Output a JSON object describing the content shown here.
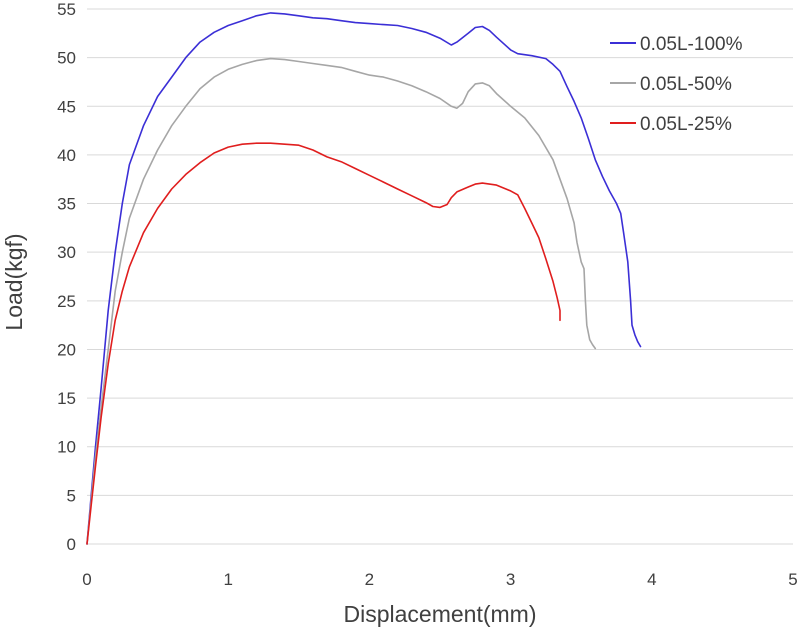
{
  "chart_data": {
    "type": "line",
    "xlabel": "Displacement(mm)",
    "ylabel": "Load(kgf)",
    "xlim": [
      0,
      5
    ],
    "ylim": [
      0,
      55
    ],
    "xticks": [
      0,
      1,
      2,
      3,
      4,
      5
    ],
    "yticks": [
      0,
      5,
      10,
      15,
      20,
      25,
      30,
      35,
      40,
      45,
      50,
      55
    ],
    "grid": "horizontal",
    "legend_position": "top-right",
    "series": [
      {
        "name": "0.05L-100%",
        "color": "#3b2fd6",
        "points": [
          [
            0,
            0
          ],
          [
            0.03,
            5
          ],
          [
            0.06,
            10
          ],
          [
            0.1,
            16
          ],
          [
            0.15,
            24
          ],
          [
            0.2,
            30
          ],
          [
            0.25,
            35
          ],
          [
            0.3,
            39
          ],
          [
            0.4,
            43
          ],
          [
            0.5,
            46
          ],
          [
            0.6,
            48
          ],
          [
            0.7,
            50
          ],
          [
            0.8,
            51.6
          ],
          [
            0.9,
            52.6
          ],
          [
            1.0,
            53.3
          ],
          [
            1.1,
            53.8
          ],
          [
            1.2,
            54.3
          ],
          [
            1.3,
            54.6
          ],
          [
            1.4,
            54.5
          ],
          [
            1.5,
            54.3
          ],
          [
            1.6,
            54.1
          ],
          [
            1.7,
            54.0
          ],
          [
            1.8,
            53.8
          ],
          [
            1.9,
            53.6
          ],
          [
            2.0,
            53.5
          ],
          [
            2.1,
            53.4
          ],
          [
            2.2,
            53.3
          ],
          [
            2.3,
            53.0
          ],
          [
            2.4,
            52.6
          ],
          [
            2.5,
            52.0
          ],
          [
            2.58,
            51.3
          ],
          [
            2.62,
            51.6
          ],
          [
            2.7,
            52.5
          ],
          [
            2.75,
            53.1
          ],
          [
            2.8,
            53.2
          ],
          [
            2.85,
            52.8
          ],
          [
            2.9,
            52.1
          ],
          [
            3.0,
            50.8
          ],
          [
            3.05,
            50.4
          ],
          [
            3.15,
            50.2
          ],
          [
            3.25,
            49.9
          ],
          [
            3.3,
            49.3
          ],
          [
            3.35,
            48.6
          ],
          [
            3.4,
            47.0
          ],
          [
            3.45,
            45.5
          ],
          [
            3.5,
            43.8
          ],
          [
            3.55,
            41.7
          ],
          [
            3.6,
            39.5
          ],
          [
            3.65,
            37.8
          ],
          [
            3.7,
            36.3
          ],
          [
            3.75,
            35.0
          ],
          [
            3.78,
            34.0
          ],
          [
            3.8,
            32.0
          ],
          [
            3.83,
            29.0
          ],
          [
            3.85,
            25.0
          ],
          [
            3.86,
            22.5
          ],
          [
            3.88,
            21.5
          ],
          [
            3.9,
            20.8
          ],
          [
            3.92,
            20.3
          ]
        ]
      },
      {
        "name": "0.05L-50%",
        "color": "#a6a6a6",
        "points": [
          [
            0,
            0
          ],
          [
            0.03,
            4.5
          ],
          [
            0.06,
            9
          ],
          [
            0.1,
            14
          ],
          [
            0.15,
            20
          ],
          [
            0.2,
            26
          ],
          [
            0.25,
            30
          ],
          [
            0.3,
            33.5
          ],
          [
            0.4,
            37.5
          ],
          [
            0.5,
            40.5
          ],
          [
            0.6,
            43
          ],
          [
            0.7,
            45
          ],
          [
            0.8,
            46.8
          ],
          [
            0.9,
            48
          ],
          [
            1.0,
            48.8
          ],
          [
            1.1,
            49.3
          ],
          [
            1.2,
            49.7
          ],
          [
            1.3,
            49.9
          ],
          [
            1.4,
            49.8
          ],
          [
            1.5,
            49.6
          ],
          [
            1.6,
            49.4
          ],
          [
            1.7,
            49.2
          ],
          [
            1.8,
            49.0
          ],
          [
            1.9,
            48.6
          ],
          [
            2.0,
            48.2
          ],
          [
            2.1,
            48.0
          ],
          [
            2.2,
            47.6
          ],
          [
            2.3,
            47.1
          ],
          [
            2.4,
            46.5
          ],
          [
            2.5,
            45.8
          ],
          [
            2.58,
            45.0
          ],
          [
            2.62,
            44.8
          ],
          [
            2.66,
            45.3
          ],
          [
            2.7,
            46.5
          ],
          [
            2.75,
            47.3
          ],
          [
            2.8,
            47.4
          ],
          [
            2.85,
            47.1
          ],
          [
            2.9,
            46.3
          ],
          [
            3.0,
            45.0
          ],
          [
            3.1,
            43.8
          ],
          [
            3.2,
            42.0
          ],
          [
            3.3,
            39.5
          ],
          [
            3.35,
            37.5
          ],
          [
            3.4,
            35.5
          ],
          [
            3.45,
            33.0
          ],
          [
            3.47,
            31.0
          ],
          [
            3.5,
            29.0
          ],
          [
            3.52,
            28.3
          ],
          [
            3.53,
            25.0
          ],
          [
            3.54,
            22.5
          ],
          [
            3.56,
            21.0
          ],
          [
            3.58,
            20.5
          ],
          [
            3.6,
            20.1
          ]
        ]
      },
      {
        "name": "0.05L-25%",
        "color": "#e01e1e",
        "points": [
          [
            0,
            0
          ],
          [
            0.03,
            4
          ],
          [
            0.06,
            8
          ],
          [
            0.1,
            13
          ],
          [
            0.15,
            18.5
          ],
          [
            0.2,
            23
          ],
          [
            0.25,
            26
          ],
          [
            0.3,
            28.5
          ],
          [
            0.4,
            32
          ],
          [
            0.5,
            34.5
          ],
          [
            0.6,
            36.5
          ],
          [
            0.7,
            38
          ],
          [
            0.8,
            39.2
          ],
          [
            0.9,
            40.2
          ],
          [
            1.0,
            40.8
          ],
          [
            1.1,
            41.1
          ],
          [
            1.2,
            41.2
          ],
          [
            1.3,
            41.2
          ],
          [
            1.4,
            41.1
          ],
          [
            1.5,
            41.0
          ],
          [
            1.6,
            40.5
          ],
          [
            1.7,
            39.8
          ],
          [
            1.8,
            39.3
          ],
          [
            1.9,
            38.6
          ],
          [
            2.0,
            37.9
          ],
          [
            2.1,
            37.2
          ],
          [
            2.2,
            36.5
          ],
          [
            2.3,
            35.8
          ],
          [
            2.4,
            35.1
          ],
          [
            2.45,
            34.7
          ],
          [
            2.5,
            34.6
          ],
          [
            2.55,
            34.9
          ],
          [
            2.58,
            35.6
          ],
          [
            2.62,
            36.2
          ],
          [
            2.7,
            36.7
          ],
          [
            2.75,
            37.0
          ],
          [
            2.8,
            37.1
          ],
          [
            2.9,
            36.9
          ],
          [
            3.0,
            36.3
          ],
          [
            3.05,
            35.9
          ],
          [
            3.1,
            34.5
          ],
          [
            3.15,
            33.0
          ],
          [
            3.2,
            31.5
          ],
          [
            3.25,
            29.3
          ],
          [
            3.3,
            27.0
          ],
          [
            3.33,
            25.3
          ],
          [
            3.35,
            24.0
          ],
          [
            3.35,
            23.0
          ]
        ]
      }
    ]
  }
}
